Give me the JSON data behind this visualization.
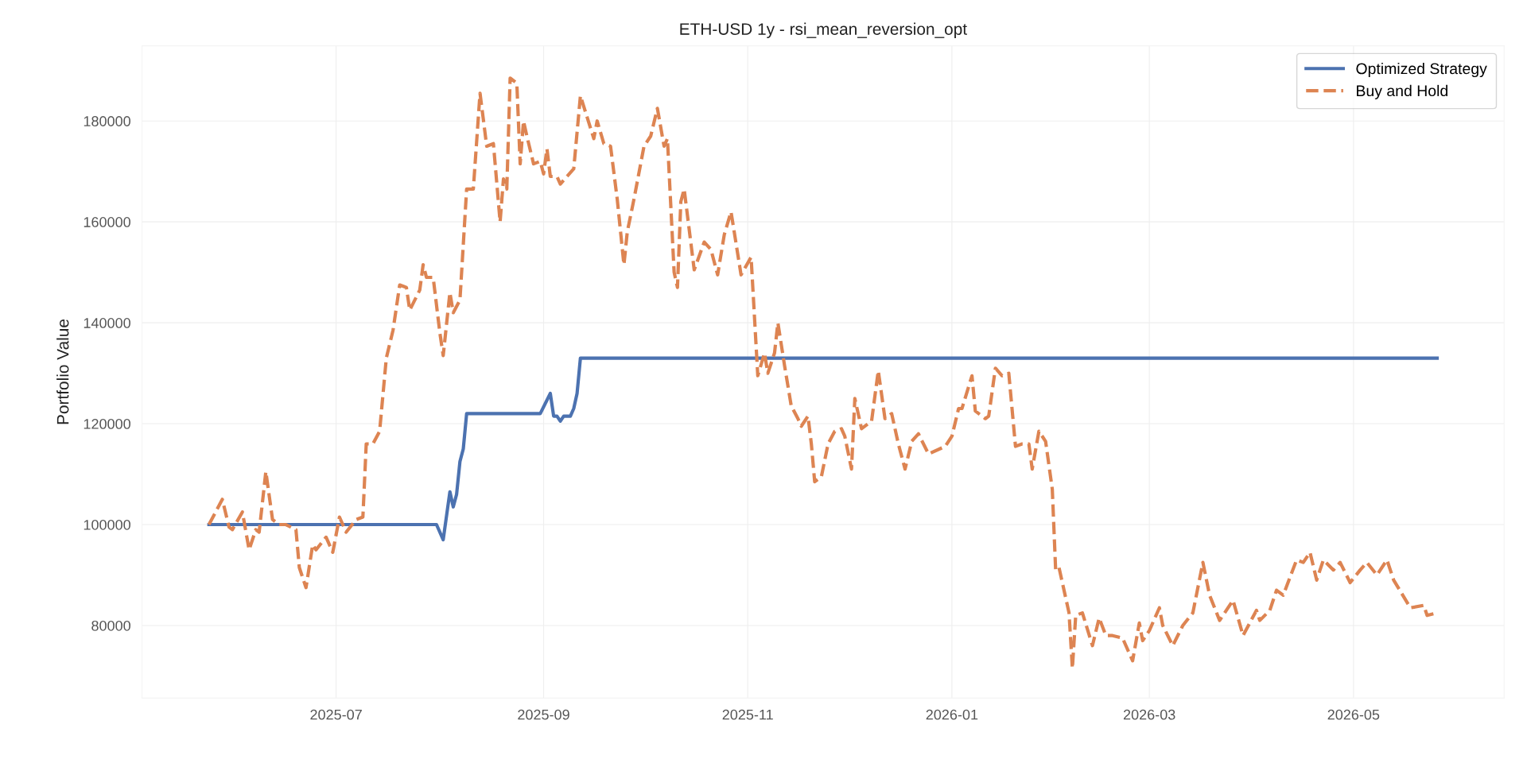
{
  "chart_data": {
    "type": "line",
    "title": "ETH-USD 1y - rsi_mean_reversion_opt",
    "ylabel": "Portfolio Value",
    "xlim": [
      "2025-05-04",
      "2026-06-15"
    ],
    "ylim": [
      65600,
      194900
    ],
    "xticks": [
      {
        "value": "2025-07-01",
        "label": "2025-07"
      },
      {
        "value": "2025-09-01",
        "label": "2025-09"
      },
      {
        "value": "2025-11-01",
        "label": "2025-11"
      },
      {
        "value": "2026-01-01",
        "label": "2026-01"
      },
      {
        "value": "2026-03-01",
        "label": "2026-03"
      },
      {
        "value": "2026-05-01",
        "label": "2026-05"
      }
    ],
    "yticks": [
      80000,
      100000,
      120000,
      140000,
      160000,
      180000
    ],
    "grid": true,
    "legend": "top right",
    "series": [
      {
        "name": "Optimized Strategy",
        "color": "#4c72b0",
        "line_style": "solid",
        "x": [
          "2025-05-24",
          "2025-07-31",
          "2025-08-02",
          "2025-08-04",
          "2025-08-05",
          "2025-08-06",
          "2025-08-07",
          "2025-08-08",
          "2025-08-09",
          "2025-08-31",
          "2025-09-03",
          "2025-09-04",
          "2025-09-05",
          "2025-09-06",
          "2025-09-07",
          "2025-09-09",
          "2025-09-10",
          "2025-09-11",
          "2025-09-12",
          "2026-05-26"
        ],
        "values": [
          100000,
          100000,
          97000,
          106500,
          103500,
          106000,
          112500,
          115000,
          122000,
          122000,
          126000,
          121500,
          121500,
          120500,
          121500,
          121500,
          123000,
          126000,
          133000,
          133000
        ]
      },
      {
        "name": "Buy and Hold",
        "color": "#dd8452",
        "line_style": "dashed",
        "x": [
          "2025-05-24",
          "2025-05-28",
          "2025-05-30",
          "2025-05-31",
          "2025-06-03",
          "2025-06-05",
          "2025-06-07",
          "2025-06-08",
          "2025-06-10",
          "2025-06-12",
          "2025-06-14",
          "2025-06-16",
          "2025-06-19",
          "2025-06-20",
          "2025-06-22",
          "2025-06-24",
          "2025-06-25",
          "2025-06-28",
          "2025-06-30",
          "2025-07-02",
          "2025-07-04",
          "2025-07-07",
          "2025-07-09",
          "2025-07-10",
          "2025-07-12",
          "2025-07-14",
          "2025-07-16",
          "2025-07-18",
          "2025-07-20",
          "2025-07-22",
          "2025-07-23",
          "2025-07-26",
          "2025-07-27",
          "2025-07-28",
          "2025-07-30",
          "2025-08-01",
          "2025-08-02",
          "2025-08-04",
          "2025-08-05",
          "2025-08-07",
          "2025-08-09",
          "2025-08-11",
          "2025-08-13",
          "2025-08-15",
          "2025-08-17",
          "2025-08-19",
          "2025-08-20",
          "2025-08-21",
          "2025-08-22",
          "2025-08-24",
          "2025-08-25",
          "2025-08-26",
          "2025-08-27",
          "2025-08-29",
          "2025-08-31",
          "2025-09-01",
          "2025-09-02",
          "2025-09-03",
          "2025-09-05",
          "2025-09-06",
          "2025-09-08",
          "2025-09-10",
          "2025-09-12",
          "2025-09-16",
          "2025-09-17",
          "2025-09-19",
          "2025-09-21",
          "2025-09-23",
          "2025-09-25",
          "2025-09-26",
          "2025-09-28",
          "2025-10-01",
          "2025-10-03",
          "2025-10-05",
          "2025-10-07",
          "2025-10-08",
          "2025-10-10",
          "2025-10-11",
          "2025-10-12",
          "2025-10-13",
          "2025-10-16",
          "2025-10-19",
          "2025-10-21",
          "2025-10-23",
          "2025-10-25",
          "2025-10-27",
          "2025-10-30",
          "2025-11-02",
          "2025-11-04",
          "2025-11-06",
          "2025-11-07",
          "2025-11-09",
          "2025-11-10",
          "2025-11-12",
          "2025-11-14",
          "2025-11-16",
          "2025-11-17",
          "2025-11-19",
          "2025-11-20",
          "2025-11-21",
          "2025-11-23",
          "2025-11-25",
          "2025-11-27",
          "2025-11-29",
          "2025-11-30",
          "2025-12-02",
          "2025-12-03",
          "2025-12-05",
          "2025-12-08",
          "2025-12-10",
          "2025-12-12",
          "2025-12-14",
          "2025-12-16",
          "2025-12-18",
          "2025-12-20",
          "2025-12-22",
          "2025-12-25",
          "2025-12-30",
          "2026-01-01",
          "2026-01-03",
          "2026-01-04",
          "2026-01-07",
          "2026-01-08",
          "2026-01-11",
          "2026-01-12",
          "2026-01-14",
          "2026-01-16",
          "2026-01-18",
          "2026-01-20",
          "2026-01-22",
          "2026-01-24",
          "2026-01-25",
          "2026-01-27",
          "2026-01-29",
          "2026-01-31",
          "2026-02-01",
          "2026-02-02",
          "2026-02-05",
          "2026-02-06",
          "2026-02-07",
          "2026-02-09",
          "2026-02-12",
          "2026-02-14",
          "2026-02-16",
          "2026-02-18",
          "2026-02-21",
          "2026-02-24",
          "2026-02-26",
          "2026-02-27",
          "2026-03-01",
          "2026-03-04",
          "2026-03-05",
          "2026-03-08",
          "2026-03-11",
          "2026-03-14",
          "2026-03-17",
          "2026-03-19",
          "2026-03-22",
          "2026-03-26",
          "2026-03-29",
          "2026-04-02",
          "2026-04-03",
          "2026-04-06",
          "2026-04-08",
          "2026-04-10",
          "2026-04-12",
          "2026-04-14",
          "2026-04-16",
          "2026-04-18",
          "2026-04-20",
          "2026-04-22",
          "2026-04-25",
          "2026-04-27",
          "2026-04-30",
          "2026-05-03",
          "2026-05-05",
          "2026-05-08",
          "2026-05-11",
          "2026-05-13",
          "2026-05-18",
          "2026-05-22",
          "2026-05-23",
          "2026-05-26"
        ],
        "values": [
          100000,
          105000,
          99500,
          99000,
          102500,
          95000,
          99000,
          98500,
          110500,
          101000,
          100000,
          100000,
          99000,
          91500,
          87500,
          96000,
          95000,
          97500,
          94500,
          101500,
          98500,
          101000,
          101500,
          116000,
          116000,
          118500,
          133000,
          138500,
          147500,
          147000,
          142500,
          146500,
          151500,
          149000,
          149000,
          138000,
          133500,
          146000,
          142000,
          144500,
          166500,
          166500,
          185500,
          175000,
          175500,
          160000,
          168500,
          166500,
          188500,
          187500,
          171500,
          180000,
          177000,
          171500,
          172000,
          169500,
          174500,
          169000,
          169000,
          167500,
          169000,
          170500,
          185000,
          176500,
          180000,
          175500,
          175000,
          164500,
          151500,
          158000,
          164500,
          175000,
          177000,
          182500,
          175000,
          176500,
          150000,
          147000,
          164000,
          166500,
          150500,
          156000,
          154500,
          149500,
          157500,
          162000,
          149500,
          153000,
          129500,
          134000,
          130000,
          134000,
          140000,
          131500,
          123500,
          121000,
          119500,
          121500,
          116000,
          108500,
          109500,
          116000,
          118500,
          119000,
          117500,
          111000,
          125000,
          119000,
          120500,
          130500,
          121000,
          122000,
          116000,
          111000,
          116500,
          118000,
          114000,
          115500,
          117500,
          123000,
          123000,
          129500,
          122500,
          121000,
          121500,
          131000,
          129500,
          130000,
          115500,
          116000,
          116000,
          111000,
          118500,
          116500,
          107000,
          91000,
          91500,
          82500,
          71500,
          82000,
          82500,
          76000,
          81500,
          78000,
          78000,
          77500,
          73000,
          80500,
          77000,
          79000,
          83500,
          80000,
          76000,
          80000,
          82500,
          92500,
          86000,
          81000,
          85000,
          78000,
          83000,
          81000,
          83000,
          87000,
          86000,
          89500,
          93000,
          92500,
          94500,
          89000,
          93000,
          91000,
          92500,
          88500,
          91000,
          92500,
          90000,
          93000,
          89000,
          83500,
          84000,
          82000,
          82500
        ]
      }
    ]
  }
}
